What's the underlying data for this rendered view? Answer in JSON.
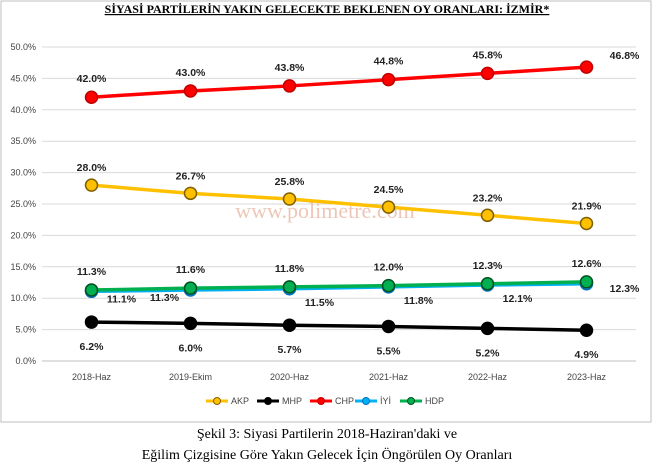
{
  "chart_data": {
    "type": "line",
    "title": "SİYASİ PARTİLERİN YAKIN GELECEKTE BEKLENEN OY ORANLARI: İZMİR*",
    "categories": [
      "2018-Haz",
      "2019-Ekim",
      "2020-Haz",
      "2021-Haz",
      "2022-Haz",
      "2023-Haz"
    ],
    "ylim": [
      0,
      50
    ],
    "yticks": [
      "0.0%",
      "5.0%",
      "10.0%",
      "15.0%",
      "20.0%",
      "25.0%",
      "30.0%",
      "35.0%",
      "40.0%",
      "45.0%",
      "50.0%"
    ],
    "grid": true,
    "legend_position": "bottom",
    "series": [
      {
        "name": "AKP",
        "color": "#FFC000",
        "marker_fill": "#FFC000",
        "marker_stroke": "#7F6000",
        "values": [
          28.0,
          26.7,
          25.8,
          24.5,
          23.2,
          21.9
        ],
        "labels": [
          "28.0%",
          "26.7%",
          "25.8%",
          "24.5%",
          "23.2%",
          "21.9%"
        ]
      },
      {
        "name": "MHP",
        "color": "#000000",
        "marker_fill": "#000000",
        "marker_stroke": "#000000",
        "values": [
          6.2,
          6.0,
          5.7,
          5.5,
          5.2,
          4.9
        ],
        "labels": [
          "6.2%",
          "6.0%",
          "5.7%",
          "5.5%",
          "5.2%",
          "4.9%"
        ]
      },
      {
        "name": "CHP",
        "color": "#FF0000",
        "marker_fill": "#FF0000",
        "marker_stroke": "#C00000",
        "values": [
          42.0,
          43.0,
          43.8,
          44.8,
          45.8,
          46.8
        ],
        "labels": [
          "42.0%",
          "43.0%",
          "43.8%",
          "44.8%",
          "45.8%",
          "46.8%"
        ]
      },
      {
        "name": "İYİ",
        "color": "#00B0F0",
        "marker_fill": "#00B0F0",
        "marker_stroke": "#0070C0",
        "values": [
          11.1,
          11.3,
          11.5,
          11.8,
          12.1,
          12.3
        ],
        "labels": [
          "11.1%",
          "11.3%",
          "11.5%",
          "11.8%",
          "12.1%",
          "12.3%"
        ]
      },
      {
        "name": "HDP",
        "color": "#00B050",
        "marker_fill": "#00B050",
        "marker_stroke": "#005020",
        "values": [
          11.3,
          11.6,
          11.8,
          12.0,
          12.3,
          12.6
        ],
        "labels": [
          "11.3%",
          "11.6%",
          "11.8%",
          "12.0%",
          "12.3%",
          "12.6%"
        ]
      }
    ],
    "watermark": "www.polimetre.com"
  },
  "caption": {
    "line1": "Şekil 3: Siyasi Partilerin 2018-Haziran'daki ve",
    "line2": "Eğilim Çizgisine Göre Yakın Gelecek İçin Öngörülen Oy Oranları"
  }
}
